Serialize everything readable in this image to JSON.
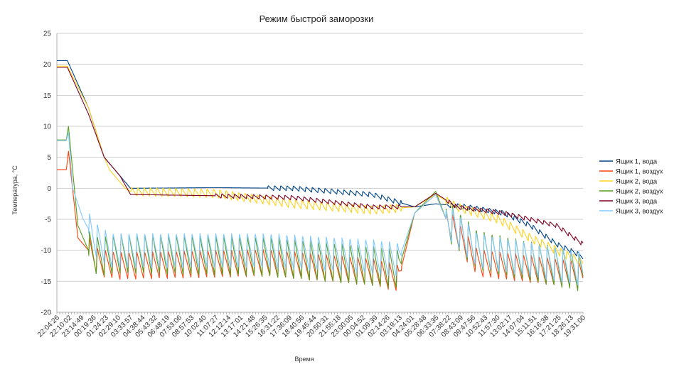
{
  "chart_data": {
    "type": "line",
    "title": "Режим быстрой заморозки",
    "xlabel": "Время",
    "ylabel": "Температура, °С",
    "ylim": [
      -20,
      25
    ],
    "yticks": [
      25,
      20,
      15,
      10,
      5,
      0,
      -5,
      -10,
      -15,
      -20
    ],
    "grid": true,
    "legend_position": "right",
    "x_ticklabels": [
      "22:04:26",
      "22:10:02",
      "23:14:49",
      "00:19:36",
      "01:24:23",
      "02:29:10",
      "03:33:57",
      "04:38:44",
      "05:43:32",
      "06:48:19",
      "07:53:06",
      "08:57:53",
      "10:02:40",
      "11:07:27",
      "12:12:14",
      "13:17:01",
      "14:21:48",
      "15:26:35",
      "16:31:22",
      "17:36:09",
      "18:40:56",
      "19:45:44",
      "20:50:31",
      "21:55:18",
      "23:00:05",
      "00:04:52",
      "01:09:39",
      "02:14:26",
      "03:19:13",
      "04:24:01",
      "05:28:48",
      "06:33:35",
      "07:38:22",
      "08:43:09",
      "09:47:56",
      "10:52:43",
      "11:57:30",
      "13:02:17",
      "14:07:04",
      "15:11:51",
      "16:16:38",
      "17:21:25",
      "18:26:13",
      "19:31:00"
    ],
    "series": [
      {
        "name": "Ящик 1, вода",
        "color": "#004586",
        "keypoints": [
          [
            0,
            20.6
          ],
          [
            0.02,
            20.6
          ],
          [
            0.06,
            13
          ],
          [
            0.09,
            5
          ],
          [
            0.12,
            2
          ],
          [
            0.14,
            0
          ],
          [
            0.3,
            0.1
          ],
          [
            0.45,
            0
          ],
          [
            0.6,
            -1
          ],
          [
            0.68,
            -3
          ],
          [
            0.72,
            -2.5
          ],
          [
            0.78,
            -3
          ],
          [
            0.85,
            -4
          ],
          [
            0.9,
            -6
          ],
          [
            0.95,
            -9
          ],
          [
            1,
            -11
          ]
        ],
        "osc_amp": 0.4,
        "osc_period": 0.012,
        "osc_start": 0.4
      },
      {
        "name": "Ящик 1, воздух",
        "color": "#ff420e",
        "keypoints": [
          [
            0,
            3
          ],
          [
            0.018,
            3
          ],
          [
            0.022,
            6
          ],
          [
            0.04,
            -8
          ],
          [
            0.06,
            -10
          ],
          [
            0.08,
            -12
          ],
          [
            0.12,
            -12.5
          ],
          [
            0.4,
            -12
          ],
          [
            0.6,
            -13.5
          ],
          [
            0.65,
            -14.5
          ],
          [
            0.68,
            -4
          ],
          [
            0.72,
            -1
          ],
          [
            0.74,
            -5
          ],
          [
            0.8,
            -12
          ],
          [
            1,
            -14
          ]
        ],
        "osc_amp": 2.2,
        "osc_period": 0.015,
        "osc_start": 0.06
      },
      {
        "name": "Ящик 2, вода",
        "color": "#ffd320",
        "keypoints": [
          [
            0,
            19.7
          ],
          [
            0.02,
            19.7
          ],
          [
            0.06,
            13
          ],
          [
            0.09,
            5
          ],
          [
            0.1,
            3
          ],
          [
            0.13,
            0
          ],
          [
            0.14,
            -0.5
          ],
          [
            0.3,
            -0.8
          ],
          [
            0.45,
            -2.5
          ],
          [
            0.6,
            -3.5
          ],
          [
            0.68,
            -3
          ],
          [
            0.72,
            -1
          ],
          [
            0.76,
            -3
          ],
          [
            0.84,
            -5
          ],
          [
            0.9,
            -8
          ],
          [
            1,
            -12
          ]
        ],
        "osc_amp": 0.7,
        "osc_period": 0.012,
        "osc_start": 0.14
      },
      {
        "name": "Ящик 2, воздух",
        "color": "#579d1c",
        "keypoints": [
          [
            0,
            7.8
          ],
          [
            0.018,
            7.8
          ],
          [
            0.022,
            10
          ],
          [
            0.04,
            -6
          ],
          [
            0.06,
            -10
          ],
          [
            0.08,
            -11
          ],
          [
            0.12,
            -10.5
          ],
          [
            0.4,
            -11
          ],
          [
            0.6,
            -12.5
          ],
          [
            0.65,
            -13
          ],
          [
            0.68,
            -4
          ],
          [
            0.72,
            -0.5
          ],
          [
            0.74,
            -5
          ],
          [
            0.8,
            -10
          ],
          [
            1,
            -13.5
          ]
        ],
        "osc_amp": 3.2,
        "osc_period": 0.015,
        "osc_start": 0.06
      },
      {
        "name": "Ящик 3, вода",
        "color": "#7e0021",
        "keypoints": [
          [
            0,
            19.5
          ],
          [
            0.02,
            19.5
          ],
          [
            0.06,
            12
          ],
          [
            0.09,
            5
          ],
          [
            0.12,
            2
          ],
          [
            0.14,
            -1
          ],
          [
            0.3,
            -1.2
          ],
          [
            0.45,
            -1.5
          ],
          [
            0.6,
            -3
          ],
          [
            0.68,
            -3
          ],
          [
            0.72,
            -0.8
          ],
          [
            0.76,
            -3
          ],
          [
            0.85,
            -4
          ],
          [
            0.95,
            -6
          ],
          [
            1,
            -9
          ]
        ],
        "osc_amp": 0.35,
        "osc_period": 0.012,
        "osc_start": 0.3
      },
      {
        "name": "Ящик 3, воздух",
        "color": "#83caff",
        "keypoints": [
          [
            0,
            7.7
          ],
          [
            0.018,
            7.7
          ],
          [
            0.022,
            9
          ],
          [
            0.03,
            0
          ],
          [
            0.05,
            -5
          ],
          [
            0.07,
            -8
          ],
          [
            0.1,
            -10
          ],
          [
            0.14,
            -10
          ],
          [
            0.4,
            -10
          ],
          [
            0.6,
            -11
          ],
          [
            0.65,
            -11.5
          ],
          [
            0.68,
            -4
          ],
          [
            0.72,
            -1
          ],
          [
            0.74,
            -5
          ],
          [
            0.8,
            -10
          ],
          [
            1,
            -13
          ]
        ],
        "osc_amp": 2.8,
        "osc_period": 0.015,
        "osc_start": 0.06
      }
    ]
  }
}
